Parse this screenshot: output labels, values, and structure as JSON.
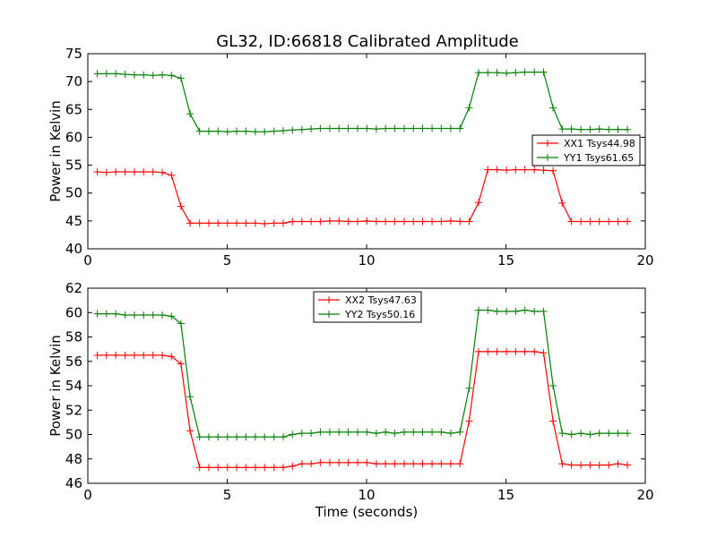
{
  "figure_title": "GL32, ID:66818 Calibrated Amplitude",
  "chart_data": [
    {
      "type": "line",
      "title": "GL32, ID:66818 Calibrated Amplitude",
      "xlabel": "",
      "ylabel": "Power in Kelvin",
      "xlim": [
        0,
        20
      ],
      "ylim": [
        40,
        75
      ],
      "xticks": [
        "0",
        "5",
        "10",
        "15",
        "20"
      ],
      "yticks": [
        "40",
        "45",
        "50",
        "55",
        "60",
        "65",
        "70",
        "75"
      ],
      "legend_position": "right",
      "x": [
        0.34,
        0.67,
        1.0,
        1.34,
        1.67,
        2.0,
        2.34,
        2.67,
        3.0,
        3.34,
        3.67,
        4.01,
        4.34,
        4.67,
        5.01,
        5.34,
        5.67,
        6.01,
        6.34,
        6.68,
        7.01,
        7.34,
        7.68,
        8.01,
        8.34,
        8.68,
        9.01,
        9.34,
        9.68,
        10.01,
        10.35,
        10.68,
        11.01,
        11.35,
        11.68,
        12.01,
        12.35,
        12.68,
        13.02,
        13.35,
        13.68,
        14.02,
        14.35,
        14.68,
        15.02,
        15.35,
        15.68,
        16.02,
        16.35,
        16.69,
        17.02,
        17.35,
        17.69,
        18.02,
        18.35,
        18.69,
        19.02,
        19.36
      ],
      "series": [
        {
          "name": "XX1 Tsys44.98",
          "color": "#ff0000",
          "values": [
            53.8,
            53.7,
            53.8,
            53.8,
            53.8,
            53.8,
            53.8,
            53.7,
            53.2,
            47.6,
            44.6,
            44.6,
            44.6,
            44.6,
            44.6,
            44.6,
            44.6,
            44.6,
            44.5,
            44.6,
            44.6,
            44.9,
            44.9,
            44.9,
            44.9,
            45.0,
            45.0,
            44.9,
            44.9,
            45.0,
            44.9,
            44.9,
            44.9,
            44.9,
            44.9,
            44.9,
            44.9,
            44.9,
            45.0,
            44.9,
            44.9,
            48.3,
            54.2,
            54.2,
            54.1,
            54.2,
            54.2,
            54.2,
            54.1,
            54.0,
            48.2,
            44.9,
            44.9,
            44.9,
            44.9,
            44.9,
            44.9,
            44.9
          ]
        },
        {
          "name": "YY1 Tsys61.65",
          "color": "#008000",
          "values": [
            71.4,
            71.4,
            71.4,
            71.3,
            71.2,
            71.2,
            71.1,
            71.2,
            71.1,
            70.6,
            64.2,
            61.1,
            61.1,
            61.1,
            61.0,
            61.1,
            61.1,
            61.0,
            61.0,
            61.1,
            61.2,
            61.3,
            61.4,
            61.5,
            61.6,
            61.6,
            61.6,
            61.6,
            61.6,
            61.6,
            61.5,
            61.6,
            61.6,
            61.6,
            61.6,
            61.6,
            61.6,
            61.6,
            61.6,
            61.6,
            65.3,
            71.6,
            71.6,
            71.6,
            71.5,
            71.6,
            71.7,
            71.7,
            71.7,
            65.3,
            61.5,
            61.5,
            61.4,
            61.4,
            61.5,
            61.4,
            61.4,
            61.4
          ]
        }
      ]
    },
    {
      "type": "line",
      "title": "",
      "xlabel": "Time (seconds)",
      "ylabel": "Power in Kelvin",
      "xlim": [
        0,
        20
      ],
      "ylim": [
        46,
        62
      ],
      "xticks": [
        "0",
        "5",
        "10",
        "15",
        "20"
      ],
      "yticks": [
        "46",
        "48",
        "50",
        "52",
        "54",
        "56",
        "58",
        "60",
        "62"
      ],
      "legend_position": "upper center",
      "x": [
        0.34,
        0.67,
        1.0,
        1.34,
        1.67,
        2.0,
        2.34,
        2.67,
        3.0,
        3.34,
        3.67,
        4.01,
        4.34,
        4.67,
        5.01,
        5.34,
        5.67,
        6.01,
        6.34,
        6.68,
        7.01,
        7.34,
        7.68,
        8.01,
        8.34,
        8.68,
        9.01,
        9.34,
        9.68,
        10.01,
        10.35,
        10.68,
        11.01,
        11.35,
        11.68,
        12.01,
        12.35,
        12.68,
        13.02,
        13.35,
        13.68,
        14.02,
        14.35,
        14.68,
        15.02,
        15.35,
        15.68,
        16.02,
        16.35,
        16.69,
        17.02,
        17.35,
        17.69,
        18.02,
        18.35,
        18.69,
        19.02,
        19.36
      ],
      "series": [
        {
          "name": "XX2 Tsys47.63",
          "color": "#ff0000",
          "values": [
            56.5,
            56.5,
            56.5,
            56.5,
            56.5,
            56.5,
            56.5,
            56.5,
            56.4,
            55.8,
            50.3,
            47.3,
            47.3,
            47.3,
            47.3,
            47.3,
            47.3,
            47.3,
            47.3,
            47.3,
            47.3,
            47.4,
            47.6,
            47.6,
            47.7,
            47.7,
            47.7,
            47.7,
            47.7,
            47.7,
            47.6,
            47.6,
            47.6,
            47.6,
            47.6,
            47.6,
            47.6,
            47.6,
            47.6,
            47.6,
            51.1,
            56.8,
            56.8,
            56.8,
            56.8,
            56.8,
            56.8,
            56.8,
            56.7,
            51.1,
            47.6,
            47.5,
            47.5,
            47.5,
            47.5,
            47.5,
            47.6,
            47.5
          ]
        },
        {
          "name": "YY2 Tsys50.16",
          "color": "#008000",
          "values": [
            59.9,
            59.9,
            59.9,
            59.8,
            59.8,
            59.8,
            59.8,
            59.8,
            59.7,
            59.1,
            53.1,
            49.8,
            49.8,
            49.8,
            49.8,
            49.8,
            49.8,
            49.8,
            49.8,
            49.8,
            49.8,
            50.0,
            50.1,
            50.1,
            50.2,
            50.2,
            50.2,
            50.2,
            50.2,
            50.2,
            50.1,
            50.2,
            50.1,
            50.2,
            50.2,
            50.2,
            50.2,
            50.2,
            50.1,
            50.2,
            53.8,
            60.2,
            60.2,
            60.1,
            60.1,
            60.1,
            60.2,
            60.1,
            60.1,
            54.0,
            50.1,
            50.0,
            50.1,
            50.0,
            50.1,
            50.1,
            50.1,
            50.1
          ]
        }
      ]
    }
  ]
}
